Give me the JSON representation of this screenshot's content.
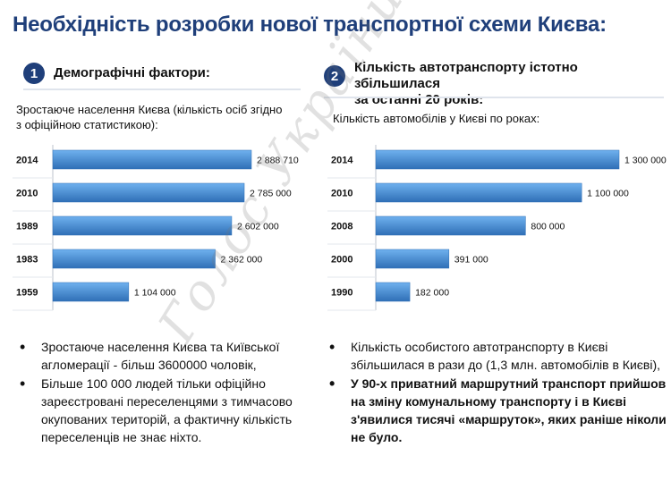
{
  "title": "Необхідність розробки нової транспортної схеми Києва:",
  "section1": {
    "number": "1",
    "heading": "Демографічні фактори:",
    "chart_caption_line1": "Зростаюче населення Києва (кількість осіб згідно",
    "chart_caption_line2": "з офіційною статистикою):",
    "bullets": [
      "Зростаюче населення Києва та Київської агломерації - більш 3600000 чоловік,",
      "Більше 100 000 людей тільки офіційно зареєстровані переселенцями з тимчасово окупованих територій, а фактичну кількість переселенців не знає ніхто."
    ]
  },
  "section2": {
    "number": "2",
    "heading_line1": "Кількість автотранспорту істотно збільшилася",
    "heading_line2": "за останні 20 років:",
    "chart_caption": "Кількість автомобілів у Києві по роках:",
    "bullets": [
      "Кількість особистого автотранспорту в Києві збільшилася в рази до (1,3 млн. автомобілів в Києві),",
      "У 90-х приватний маршрутний транспорт прийшов на зміну комунальному транспорту і в Києві з'явилися тисячі «маршруток», яких раніше ніколи не було."
    ]
  },
  "watermark": "Голос України",
  "colors": {
    "bar": "#4a90d9",
    "bar_dark": "#2f6fb6",
    "title": "#1f3f7a",
    "badge": "#1f3f7a"
  },
  "chart_data": [
    {
      "type": "bar",
      "orientation": "horizontal",
      "title": "Зростаюче населення Києва (кількість осіб згідно з офіційною статистикою):",
      "categories": [
        "2014",
        "2010",
        "1989",
        "1983",
        "1959"
      ],
      "values": [
        2888710,
        2785000,
        2602000,
        2362000,
        1104000
      ],
      "value_labels": [
        "2 888 710",
        "2 785 000",
        "2 602 000",
        "2 362 000",
        "1 104 000"
      ],
      "xlim": [
        0,
        2888710
      ],
      "grid": false,
      "legend": "none"
    },
    {
      "type": "bar",
      "orientation": "horizontal",
      "title": "Кількість автомобілів у Києві по роках:",
      "categories": [
        "2014",
        "2010",
        "2008",
        "2000",
        "1990"
      ],
      "values": [
        1300000,
        1100000,
        800000,
        391000,
        182000
      ],
      "value_labels": [
        "1 300 000",
        "1 100 000",
        "800 000",
        "391 000",
        "182 000"
      ],
      "xlim": [
        0,
        1300000
      ],
      "grid": false,
      "legend": "none"
    }
  ]
}
